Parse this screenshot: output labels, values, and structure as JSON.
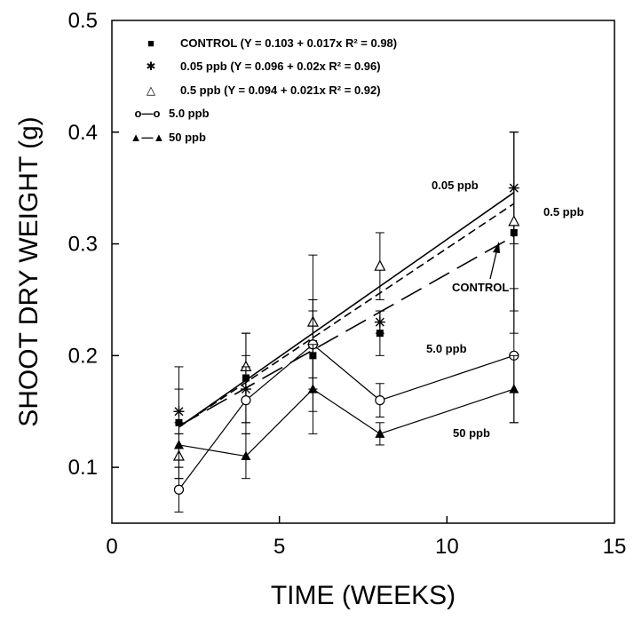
{
  "chart_data": {
    "type": "line",
    "xlabel": "TIME (WEEKS)",
    "ylabel": "SHOOT DRY WEIGHT (g)",
    "xlim": [
      0,
      15
    ],
    "ylim": [
      0.05,
      0.5
    ],
    "xticks": [
      0,
      5,
      10,
      15
    ],
    "yticks": [
      0.1,
      0.2,
      0.3,
      0.4,
      0.5
    ],
    "grid": false,
    "legend_position": "top-left",
    "x": [
      2,
      4,
      6,
      8,
      12
    ],
    "series": [
      {
        "name": "CONTROL",
        "marker": "square-filled",
        "values": [
          0.14,
          0.18,
          0.2,
          0.22,
          0.31
        ],
        "err": [
          0.05,
          0.04,
          0.05,
          0.02,
          0.09
        ],
        "connect": false,
        "color": "#000000"
      },
      {
        "name": "0.05 ppb",
        "marker": "asterisk",
        "values": [
          0.15,
          0.17,
          0.21,
          0.23,
          0.35
        ],
        "err": [
          0.02,
          0.03,
          0.04,
          0.01,
          0.05
        ],
        "connect": false,
        "color": "#000000"
      },
      {
        "name": "0.5 ppb",
        "marker": "triangle-open",
        "values": [
          0.11,
          0.19,
          0.23,
          0.28,
          0.32
        ],
        "err": [
          0.02,
          0.03,
          0.06,
          0.03,
          0.08
        ],
        "connect": false,
        "color": "#000000"
      },
      {
        "name": "5.0 ppb",
        "marker": "circle-open",
        "values": [
          0.08,
          0.16,
          0.21,
          0.16,
          0.2
        ],
        "err": [
          0.02,
          0.03,
          0.03,
          0.015,
          0.06
        ],
        "connect": true,
        "color": "#000000"
      },
      {
        "name": "50 ppb",
        "marker": "triangle-filled",
        "values": [
          0.12,
          0.11,
          0.17,
          0.13,
          0.17
        ],
        "err": [
          0.02,
          0.02,
          0.04,
          0.01,
          0.03
        ],
        "connect": true,
        "color": "#000000"
      }
    ],
    "regression_lines": [
      {
        "series": "CONTROL",
        "intercept": 0.103,
        "slope": 0.017,
        "style": "long-dash"
      },
      {
        "series": "0.05 ppb",
        "intercept": 0.096,
        "slope": 0.02,
        "style": "short-dash"
      },
      {
        "series": "0.5 ppb",
        "intercept": 0.094,
        "slope": 0.021,
        "style": "solid"
      }
    ],
    "legend": [
      {
        "symbol": "■",
        "text": "CONTROL (Y = 0.103 + 0.017x  R² = 0.98)"
      },
      {
        "symbol": "✱",
        "text": "0.05 ppb  (Y = 0.096 + 0.02x  R² = 0.96)"
      },
      {
        "symbol": "△",
        "text": "0.5 ppb  (Y = 0.094 + 0.021x  R² = 0.92)"
      },
      {
        "symbol": "o—o",
        "text": "5.0 ppb"
      },
      {
        "symbol": "▲—▲",
        "text": "50 ppb"
      }
    ],
    "annotations": [
      "0.05 ppb",
      "0.5 ppb",
      "CONTROL",
      "5.0 ppb",
      "50 ppb"
    ]
  }
}
